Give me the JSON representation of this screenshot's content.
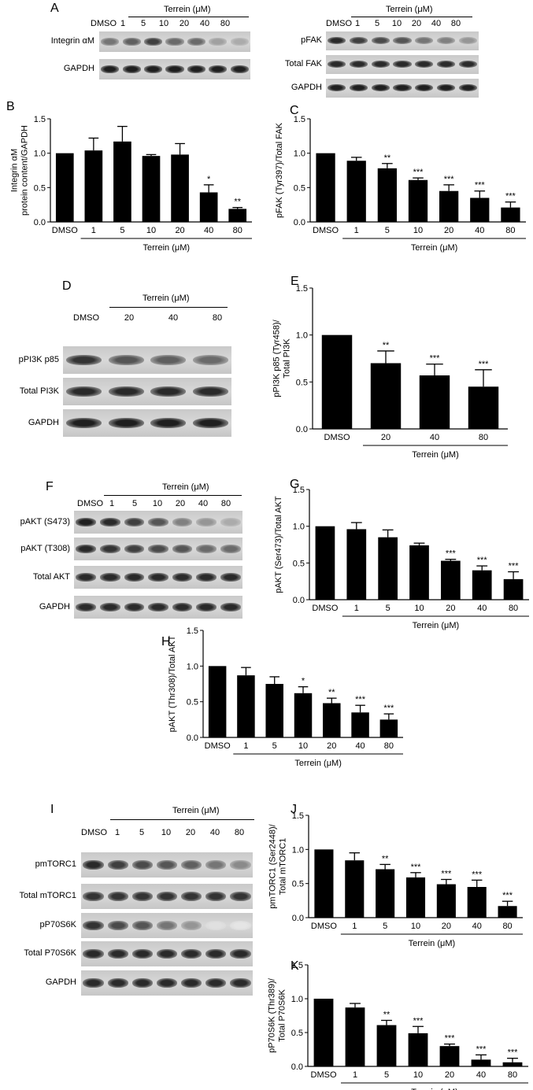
{
  "blots": [
    {
      "letter": "A",
      "treatment_title": "Terrein (μM)",
      "lanes": [
        "DMSO",
        "1",
        "5",
        "10",
        "20",
        "40",
        "80"
      ],
      "strips": [
        {
          "label": "Integrin αM",
          "intensity": [
            0.55,
            0.65,
            0.8,
            0.6,
            0.6,
            0.35,
            0.3
          ]
        },
        {
          "label": "GAPDH",
          "intensity": [
            0.95,
            0.95,
            0.95,
            0.95,
            0.95,
            0.95,
            0.95
          ]
        }
      ]
    },
    {
      "letter": "",
      "treatment_title": "Terrein (μM)",
      "lanes": [
        "DMSO",
        "1",
        "5",
        "10",
        "20",
        "40",
        "80"
      ],
      "strips": [
        {
          "label": "pFAK",
          "intensity": [
            0.9,
            0.8,
            0.75,
            0.7,
            0.55,
            0.5,
            0.4
          ]
        },
        {
          "label": "Total FAK",
          "intensity": [
            0.9,
            0.9,
            0.9,
            0.9,
            0.9,
            0.9,
            0.9
          ]
        },
        {
          "label": "GAPDH",
          "intensity": [
            0.95,
            0.95,
            0.95,
            0.95,
            0.95,
            0.95,
            0.95
          ]
        }
      ]
    },
    {
      "letter": "D",
      "treatment_title": "Terrein (μM)",
      "lanes": [
        "DMSO",
        "20",
        "40",
        "80"
      ],
      "strips": [
        {
          "label": "pPI3K p85",
          "intensity": [
            0.85,
            0.7,
            0.65,
            0.6
          ]
        },
        {
          "label": "Total PI3K",
          "intensity": [
            0.9,
            0.9,
            0.9,
            0.9
          ]
        },
        {
          "label": "GAPDH",
          "intensity": [
            0.95,
            0.95,
            0.95,
            0.95
          ]
        }
      ]
    },
    {
      "letter": "F",
      "treatment_title": "Terrein (μM)",
      "lanes": [
        "DMSO",
        "1",
        "5",
        "10",
        "20",
        "40",
        "80"
      ],
      "strips": [
        {
          "label": "pAKT (S473)",
          "intensity": [
            0.95,
            0.9,
            0.8,
            0.7,
            0.5,
            0.4,
            0.3
          ]
        },
        {
          "label": "pAKT (T308)",
          "intensity": [
            0.9,
            0.85,
            0.8,
            0.75,
            0.7,
            0.6,
            0.6
          ]
        },
        {
          "label": "Total AKT",
          "intensity": [
            0.9,
            0.9,
            0.9,
            0.9,
            0.9,
            0.9,
            0.9
          ]
        },
        {
          "label": "GAPDH",
          "intensity": [
            0.9,
            0.9,
            0.9,
            0.9,
            0.9,
            0.9,
            0.9
          ]
        }
      ]
    },
    {
      "letter": "I",
      "treatment_title": "Terrein (μM)",
      "lanes": [
        "DMSO",
        "1",
        "5",
        "10",
        "20",
        "40",
        "80"
      ],
      "strips": [
        {
          "label": "pmTORC1",
          "intensity": [
            0.9,
            0.8,
            0.75,
            0.7,
            0.65,
            0.55,
            0.45
          ]
        },
        {
          "label": "Total mTORC1",
          "intensity": [
            0.85,
            0.85,
            0.85,
            0.85,
            0.85,
            0.85,
            0.85
          ]
        },
        {
          "label": "pP70S6K",
          "intensity": [
            0.85,
            0.75,
            0.7,
            0.55,
            0.4,
            0.05,
            0.03
          ]
        },
        {
          "label": "Total P70S6K",
          "intensity": [
            0.9,
            0.9,
            0.9,
            0.9,
            0.9,
            0.9,
            0.9
          ]
        },
        {
          "label": "GAPDH",
          "intensity": [
            0.9,
            0.9,
            0.9,
            0.9,
            0.9,
            0.9,
            0.9
          ]
        }
      ]
    }
  ],
  "chart_data": [
    {
      "letter": "B",
      "type": "bar",
      "categories": [
        "DMSO",
        "1",
        "5",
        "10",
        "20",
        "40",
        "80"
      ],
      "values": [
        1.0,
        1.04,
        1.17,
        0.96,
        0.98,
        0.43,
        0.19
      ],
      "errors": [
        0,
        0.18,
        0.22,
        0.02,
        0.16,
        0.11,
        0.02
      ],
      "sig": [
        "",
        "",
        "",
        "",
        "",
        "*",
        "**"
      ],
      "ylabel": [
        "Integrin αM",
        "protein content/GAPDH"
      ],
      "xlabel": "Terrein (μM)",
      "ylim": [
        0,
        1.5
      ],
      "yticks": [
        "0.0",
        "0.5",
        "1.0",
        "1.5"
      ]
    },
    {
      "letter": "C",
      "type": "bar",
      "categories": [
        "DMSO",
        "1",
        "5",
        "10",
        "20",
        "40",
        "80"
      ],
      "values": [
        1.0,
        0.89,
        0.78,
        0.61,
        0.45,
        0.35,
        0.21
      ],
      "errors": [
        0,
        0.05,
        0.07,
        0.03,
        0.09,
        0.1,
        0.08
      ],
      "sig": [
        "",
        "",
        "**",
        "***",
        "***",
        "***",
        "***"
      ],
      "ylabel": [
        "pFAK (Tyr397)/Total FAK"
      ],
      "xlabel": "Terrein (μM)",
      "ylim": [
        0,
        1.5
      ],
      "yticks": [
        "0.0",
        "0.5",
        "1.0",
        "1.5"
      ]
    },
    {
      "letter": "E",
      "type": "bar",
      "categories": [
        "DMSO",
        "20",
        "40",
        "80"
      ],
      "values": [
        1.0,
        0.7,
        0.57,
        0.45
      ],
      "errors": [
        0,
        0.13,
        0.12,
        0.18
      ],
      "sig": [
        "",
        "**",
        "***",
        "***"
      ],
      "ylabel": [
        "pPI3K p85 (Tyr458)/",
        "Total PI3K"
      ],
      "xlabel": "Terrein (μM)",
      "ylim": [
        0,
        1.5
      ],
      "yticks": [
        "0.0",
        "0.5",
        "1.0",
        "1.5"
      ]
    },
    {
      "letter": "G",
      "type": "bar",
      "categories": [
        "DMSO",
        "1",
        "5",
        "10",
        "20",
        "40",
        "80"
      ],
      "values": [
        1.0,
        0.96,
        0.85,
        0.74,
        0.53,
        0.4,
        0.28
      ],
      "errors": [
        0,
        0.09,
        0.1,
        0.03,
        0.02,
        0.06,
        0.1
      ],
      "sig": [
        "",
        "",
        "",
        "",
        "***",
        "***",
        "***"
      ],
      "ylabel": [
        "pAKT (Ser473)/Total AKT"
      ],
      "xlabel": "Terrein (μM)",
      "ylim": [
        0,
        1.5
      ],
      "yticks": [
        "0.0",
        "0.5",
        "1.0",
        "1.5"
      ]
    },
    {
      "letter": "H",
      "type": "bar",
      "categories": [
        "DMSO",
        "1",
        "5",
        "10",
        "20",
        "40",
        "80"
      ],
      "values": [
        1.0,
        0.87,
        0.75,
        0.62,
        0.48,
        0.35,
        0.25
      ],
      "errors": [
        0,
        0.11,
        0.1,
        0.09,
        0.07,
        0.1,
        0.08
      ],
      "sig": [
        "",
        "",
        "",
        "*",
        "**",
        "***",
        "***"
      ],
      "ylabel": [
        "pAKT (Thr308)/Total AKT"
      ],
      "xlabel": "Terrein (μM)",
      "ylim": [
        0,
        1.5
      ],
      "yticks": [
        "0.0",
        "0.5",
        "1.0",
        "1.5"
      ]
    },
    {
      "letter": "J",
      "type": "bar",
      "categories": [
        "DMSO",
        "1",
        "5",
        "10",
        "20",
        "40",
        "80"
      ],
      "values": [
        1.0,
        0.84,
        0.71,
        0.59,
        0.49,
        0.45,
        0.17
      ],
      "errors": [
        0,
        0.11,
        0.07,
        0.07,
        0.07,
        0.1,
        0.07
      ],
      "sig": [
        "",
        "",
        "**",
        "***",
        "***",
        "***",
        "***"
      ],
      "ylabel": [
        "pmTORC1 (Ser2448)/",
        "Total mTORC1"
      ],
      "xlabel": "Terrein (μM)",
      "ylim": [
        0,
        1.5
      ],
      "yticks": [
        "0.0",
        "0.5",
        "1.0",
        "1.5"
      ]
    },
    {
      "letter": "K",
      "type": "bar",
      "categories": [
        "DMSO",
        "1",
        "5",
        "10",
        "20",
        "40",
        "80"
      ],
      "values": [
        1.0,
        0.87,
        0.61,
        0.49,
        0.3,
        0.1,
        0.06
      ],
      "errors": [
        0,
        0.06,
        0.07,
        0.1,
        0.03,
        0.07,
        0.06
      ],
      "sig": [
        "",
        "",
        "**",
        "***",
        "***",
        "***",
        "***"
      ],
      "ylabel": [
        "pP70S6K (Thr389)/",
        "Total P70S6K"
      ],
      "xlabel": "Terrein (μM)",
      "ylim": [
        0,
        1.5
      ],
      "yticks": [
        "0.0",
        "0.5",
        "1.0",
        "1.5"
      ]
    }
  ]
}
